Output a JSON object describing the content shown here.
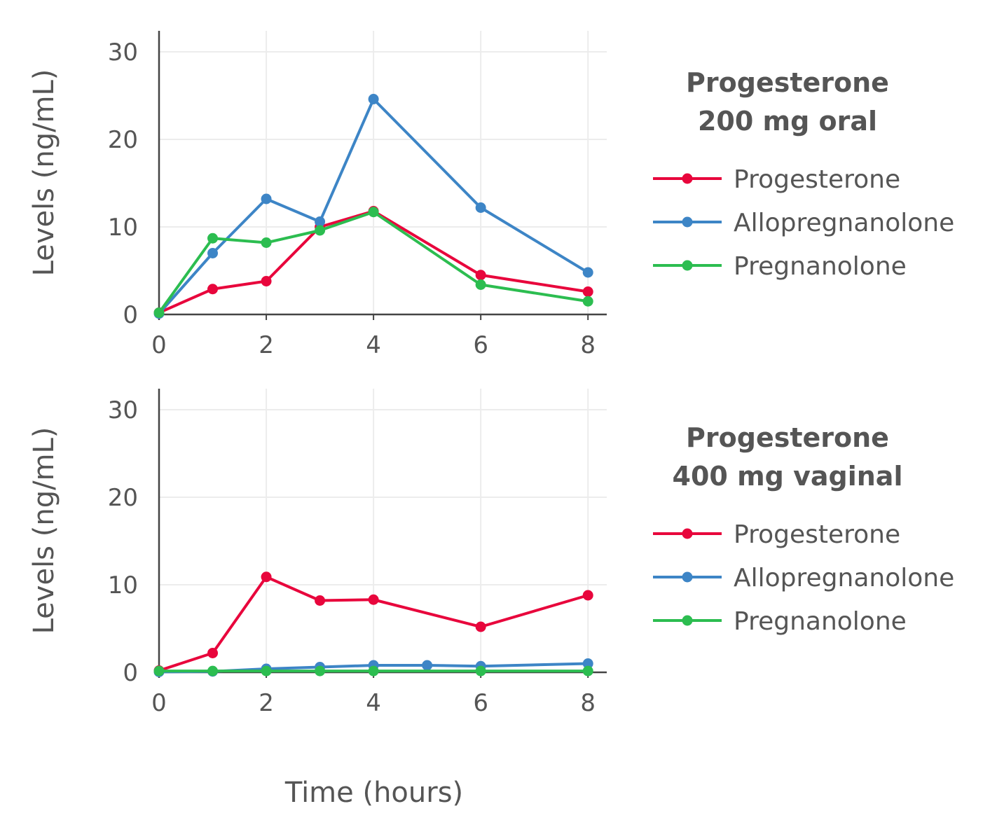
{
  "chart_data": [
    {
      "type": "line",
      "title": "Progesterone 200 mg oral",
      "title_lines": [
        "Progesterone",
        "200 mg oral"
      ],
      "xlabel": "Time (hours)",
      "ylabel": "Levels (ng/mL)",
      "xlim": [
        0,
        8.35
      ],
      "ylim": [
        0,
        32.4
      ],
      "xticks": [
        0,
        2,
        4,
        6,
        8
      ],
      "yticks": [
        0,
        10,
        20,
        30
      ],
      "grid": true,
      "legend_position": "right",
      "series": [
        {
          "name": "Progesterone",
          "color": "#e8063c",
          "x": [
            0,
            1,
            2,
            3,
            4,
            6,
            8
          ],
          "y": [
            0.2,
            2.9,
            3.8,
            10.0,
            11.8,
            4.5,
            2.6
          ]
        },
        {
          "name": "Allopregnanolone",
          "color": "#3d85c6",
          "x": [
            0,
            1,
            2,
            3,
            4,
            6,
            8
          ],
          "y": [
            0.1,
            7.0,
            13.2,
            10.6,
            24.6,
            12.2,
            4.8
          ]
        },
        {
          "name": "Pregnanolone",
          "color": "#2cbd50",
          "x": [
            0,
            1,
            2,
            3,
            4,
            6,
            8
          ],
          "y": [
            0.2,
            8.7,
            8.2,
            9.6,
            11.7,
            3.4,
            1.5
          ]
        }
      ]
    },
    {
      "type": "line",
      "title": "Progesterone 400 mg vaginal",
      "title_lines": [
        "Progesterone",
        "400 mg vaginal"
      ],
      "xlabel": "Time (hours)",
      "ylabel": "Levels (ng/mL)",
      "xlim": [
        0,
        8.35
      ],
      "ylim": [
        0,
        32.4
      ],
      "xticks": [
        0,
        2,
        4,
        6,
        8
      ],
      "yticks": [
        0,
        10,
        20,
        30
      ],
      "grid": true,
      "legend_position": "right",
      "series": [
        {
          "name": "Progesterone",
          "color": "#e8063c",
          "x": [
            0,
            1,
            2,
            3,
            4,
            6,
            8
          ],
          "y": [
            0.2,
            2.2,
            10.9,
            8.2,
            8.3,
            5.2,
            8.8
          ]
        },
        {
          "name": "Allopregnanolone",
          "color": "#3d85c6",
          "x": [
            0,
            1,
            2,
            3,
            4,
            5,
            6,
            8
          ],
          "y": [
            0.05,
            0.1,
            0.4,
            0.6,
            0.8,
            0.8,
            0.7,
            1.0
          ]
        },
        {
          "name": "Pregnanolone",
          "color": "#2cbd50",
          "x": [
            0,
            1,
            2,
            3,
            4,
            6,
            8
          ],
          "y": [
            0.15,
            0.15,
            0.15,
            0.15,
            0.15,
            0.15,
            0.15
          ]
        }
      ]
    }
  ],
  "shared_xlabel": "Time (hours)"
}
